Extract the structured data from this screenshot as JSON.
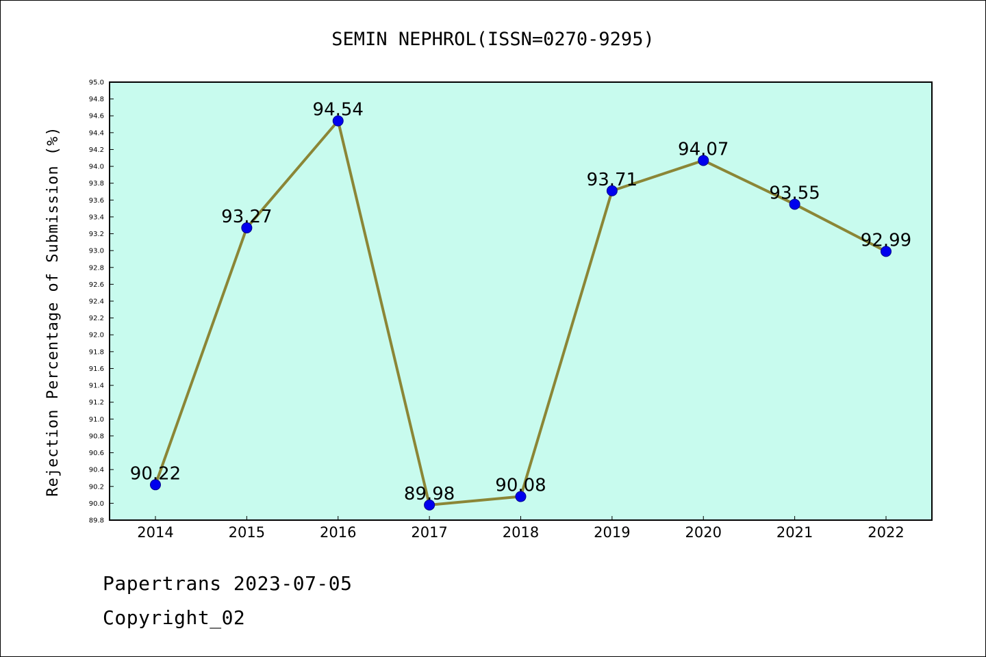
{
  "chart_data": {
    "type": "line",
    "title": "SEMIN NEPHROL(ISSN=0270-9295)",
    "xlabel": "",
    "ylabel": "Rejection Percentage of Submission (%)",
    "categories": [
      "2014",
      "2015",
      "2016",
      "2017",
      "2018",
      "2019",
      "2020",
      "2021",
      "2022"
    ],
    "series": [
      {
        "values": [
          90.22,
          93.27,
          94.54,
          89.98,
          90.08,
          93.71,
          94.07,
          93.55,
          92.99
        ]
      }
    ],
    "data_labels": [
      "90.22",
      "93.27",
      "94.54",
      "89.98",
      "90.08",
      "93.71",
      "94.07",
      "93.55",
      "92.99"
    ],
    "ylim": [
      89.8,
      95.0
    ],
    "yticks": [
      "89.8",
      "90.0",
      "90.2",
      "90.4",
      "90.6",
      "90.8",
      "91.0",
      "91.2",
      "91.4",
      "91.6",
      "91.8",
      "92.0",
      "92.2",
      "92.4",
      "92.6",
      "92.8",
      "93.0",
      "93.2",
      "93.4",
      "93.6",
      "93.8",
      "94.0",
      "94.2",
      "94.4",
      "94.6",
      "94.8",
      "95.0"
    ],
    "grid": false,
    "legend": "none",
    "colors": {
      "plot_background": "#c8fbee",
      "line": "#8b8636",
      "marker": "#0000ee"
    }
  },
  "footer": {
    "line1": "Papertrans 2023-07-05",
    "line2": "Copyright_02"
  }
}
